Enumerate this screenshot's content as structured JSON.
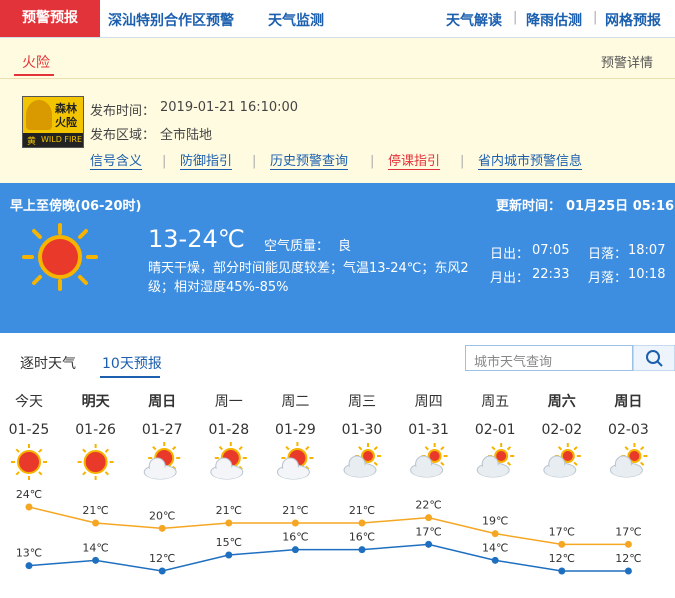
{
  "nav": {
    "active": "预警预报",
    "links": [
      "深汕特别合作区预警",
      "天气监测"
    ],
    "right_links": [
      "天气解读",
      "降雨估测",
      "网格预报"
    ]
  },
  "warning": {
    "tab": "火险",
    "detail": "预警详情",
    "icon_top": "森林",
    "icon_bottom": "火险",
    "icon_level": "黄",
    "icon_en": "WILD FIRE",
    "time_label": "发布时间：",
    "time": "2019-01-21 16:10:00",
    "area_label": "发布区域：",
    "area": "全市陆地",
    "links": [
      "信号含义",
      "防御指引",
      "历史预警查询",
      "停课指引",
      "省内城市预警信息"
    ]
  },
  "now": {
    "period": "早上至傍晚(06-20时)",
    "update_label": "更新时间：",
    "update_time": "01月25日 05:16",
    "temp_range": "13-24℃",
    "aq_label": "空气质量：",
    "aq": "良",
    "description": "晴天干燥，部分时间能见度较差；气温13-24℃；东风2级；相对湿度45%-85%",
    "sunrise_label": "日出：",
    "sunrise": "07:05",
    "sunset_label": "日落：",
    "sunset": "18:07",
    "moonrise_label": "月出：",
    "moonrise": "22:33",
    "moonset_label": "月落：",
    "moonset": "10:18"
  },
  "tabs": [
    "逐时天气",
    "10天预报"
  ],
  "search_placeholder": "城市天气查询",
  "forecast": {
    "days": [
      "今天",
      "明天",
      "周日",
      "周一",
      "周二",
      "周三",
      "周四",
      "周五",
      "周六",
      "周日"
    ],
    "dates": [
      "01-25",
      "01-26",
      "01-27",
      "01-28",
      "01-29",
      "01-30",
      "01-31",
      "02-01",
      "02-02",
      "02-03"
    ],
    "icons": [
      "sunny",
      "sunny",
      "partly-cloudy",
      "partly-cloudy",
      "partly-cloudy",
      "cloudy",
      "cloudy",
      "cloudy",
      "cloudy",
      "cloudy"
    ],
    "high": {
      "color": "#f5a623",
      "values": [
        24,
        21,
        20,
        21,
        21,
        21,
        22,
        19,
        17,
        17
      ],
      "value_labels": [
        "24℃",
        "21℃",
        "20℃",
        "21℃",
        "21℃",
        "21℃",
        "22℃",
        "19℃",
        "17℃",
        "17℃"
      ]
    },
    "low": {
      "color": "#1e6fc0",
      "values": [
        13,
        14,
        12,
        15,
        16,
        16,
        17,
        14,
        12,
        12
      ],
      "value_labels": [
        "13℃",
        "14℃",
        "12℃",
        "15℃",
        "16℃",
        "16℃",
        "17℃",
        "14℃",
        "12℃",
        "12℃"
      ]
    }
  }
}
